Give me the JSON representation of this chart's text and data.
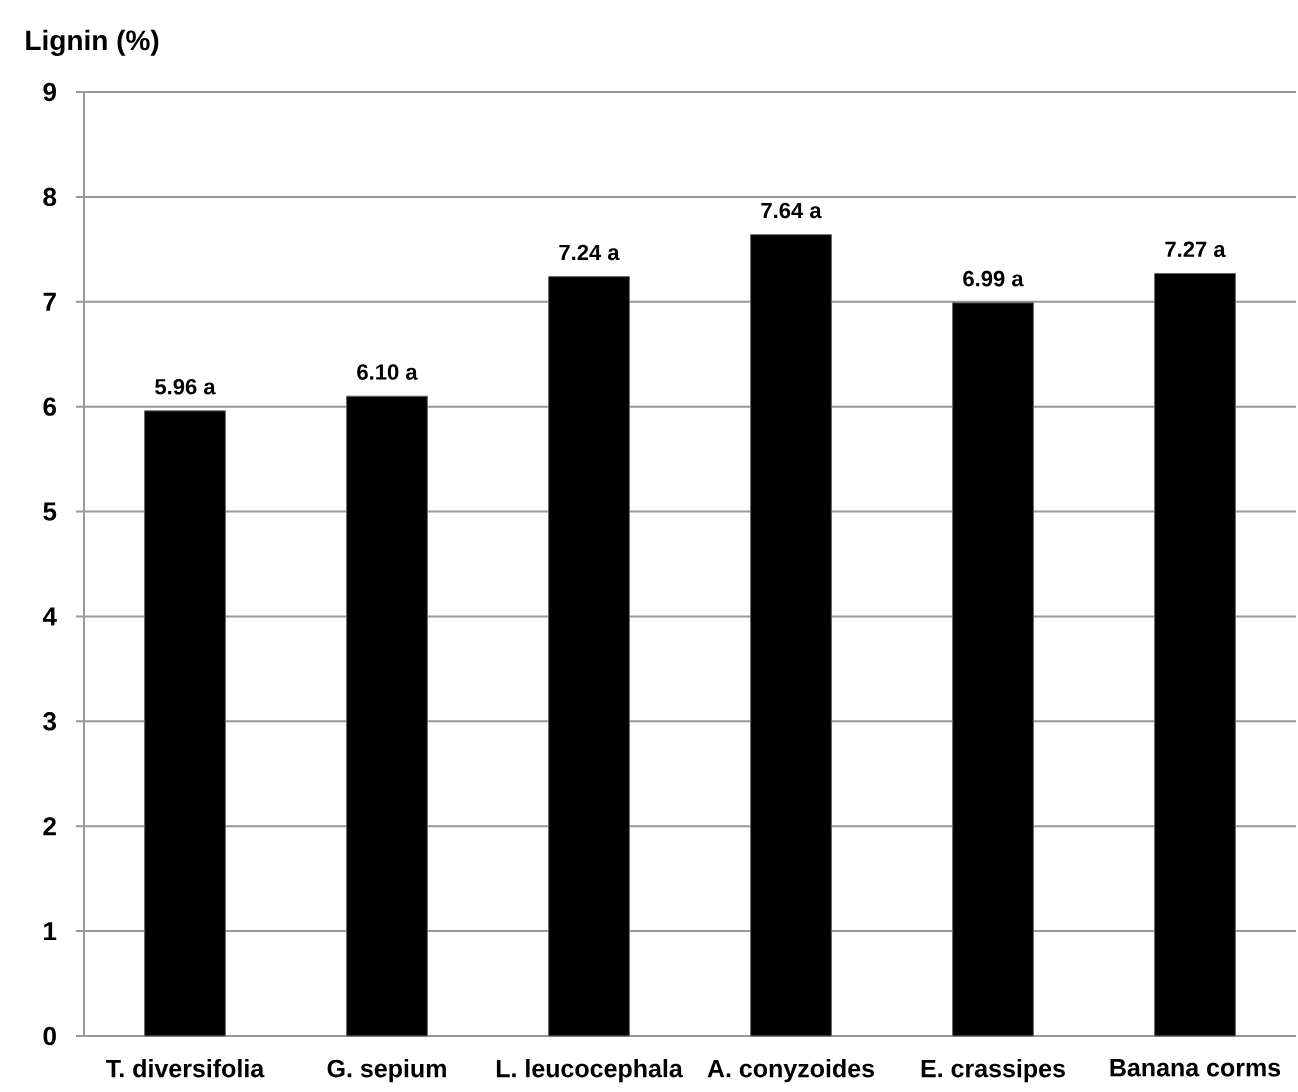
{
  "chart_data": {
    "type": "bar",
    "ylabel": "Lignin (%)",
    "categories": [
      "T. diversifolia",
      "G. sepium",
      "L. leucocephala",
      "A. conyzoides",
      "E. crassipes",
      "Banana corms"
    ],
    "values": [
      5.96,
      6.1,
      7.24,
      7.64,
      6.99,
      7.27
    ],
    "value_labels": [
      "5.96 a",
      "6.10 a",
      "7.24 a",
      "7.64 a",
      "6.99 a",
      "7.27 a"
    ],
    "color": "#000000",
    "ylim": [
      0,
      9
    ],
    "yticks": [
      0,
      1,
      2,
      3,
      4,
      5,
      6,
      7,
      8,
      9
    ],
    "grid": "y"
  }
}
